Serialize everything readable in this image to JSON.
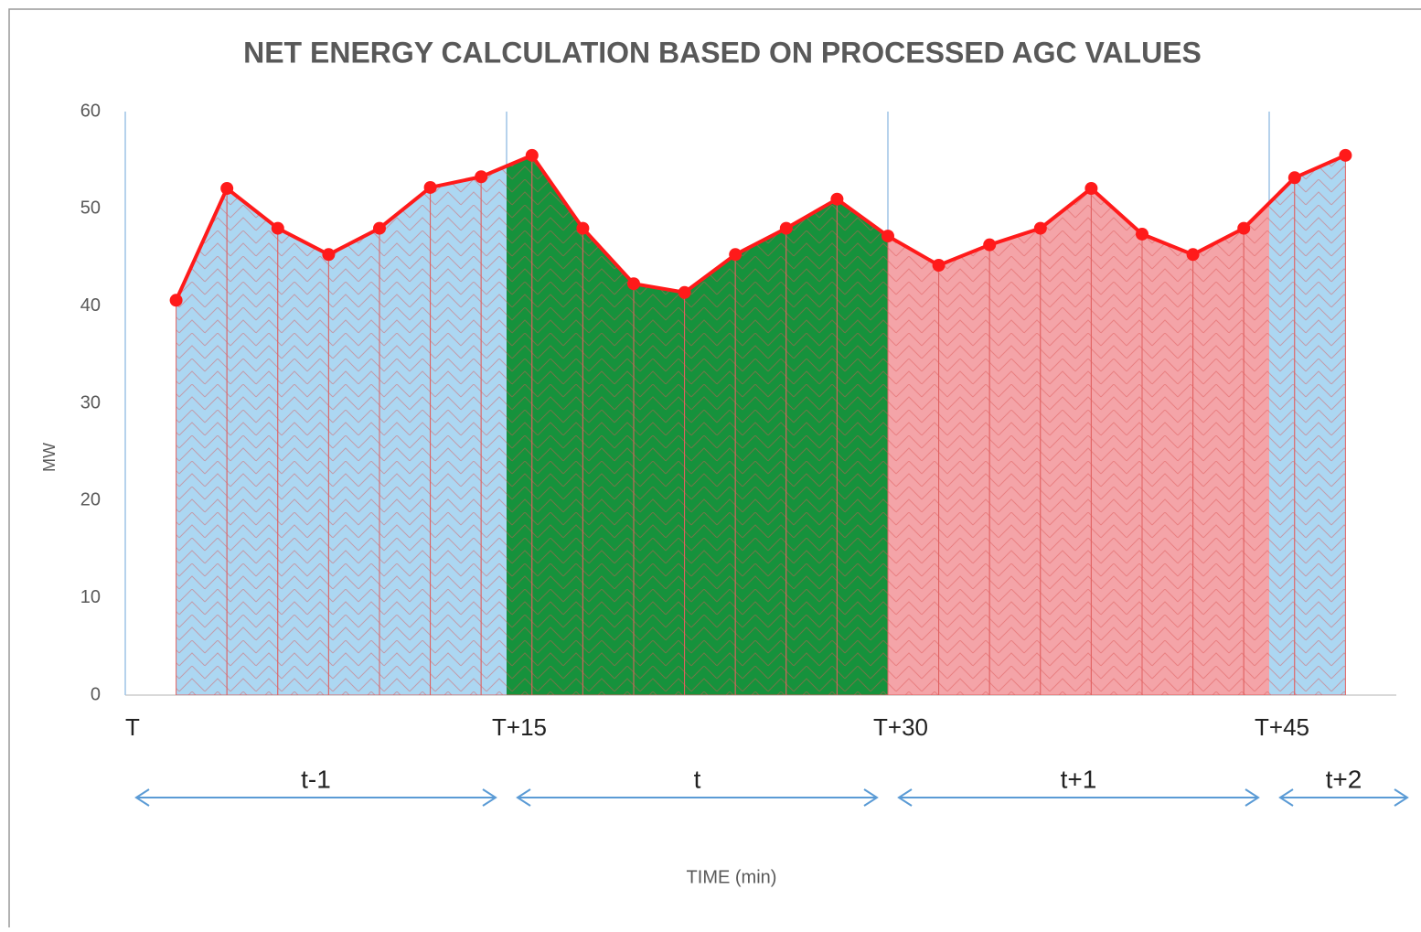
{
  "chart_data": {
    "type": "area",
    "title": "NET ENERGY CALCULATION BASED ON PROCESSED AGC VALUES",
    "y_label": "MW",
    "x_label": "TIME (min)",
    "x": [
      2,
      4,
      6,
      8,
      10,
      12,
      14,
      16,
      18,
      20,
      22,
      24,
      26,
      28,
      30,
      32,
      34,
      36,
      38,
      40,
      42,
      44,
      46,
      48
    ],
    "values": [
      40.6,
      52.1,
      48,
      45.3,
      48,
      52.2,
      53.3,
      55.5,
      48,
      42.3,
      41.4,
      45.3,
      48,
      51,
      47.2,
      44.2,
      46.3,
      48,
      52.1,
      47.4,
      45.3,
      48,
      53.2,
      55.5
    ],
    "color": "#ff1a1a",
    "xlim": [
      0,
      50
    ],
    "xticks": [
      {
        "value": 0,
        "label": "T"
      },
      {
        "value": 15,
        "label": "T+15"
      },
      {
        "value": 30,
        "label": "T+30"
      },
      {
        "value": 45,
        "label": "T+45"
      }
    ],
    "ylim": [
      0,
      60
    ],
    "yticks": [
      0,
      10,
      20,
      30,
      40,
      50,
      60
    ],
    "periods": [
      {
        "label": "t-1",
        "start": 0,
        "end": 15,
        "color": "#acd7f2"
      },
      {
        "label": "t",
        "start": 15,
        "end": 30,
        "color": "#16923c"
      },
      {
        "label": "t+1",
        "start": 30,
        "end": 45,
        "color": "#f4a4a8"
      },
      {
        "label": "t+2",
        "start": 45,
        "end": 50,
        "color": "#acd7f2"
      }
    ]
  }
}
